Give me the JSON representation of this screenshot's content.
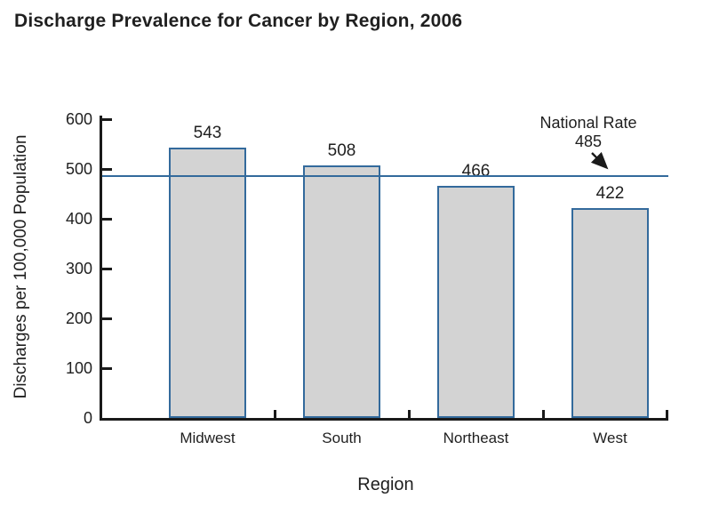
{
  "title": "Discharge Prevalence for Cancer by Region, 2006",
  "chart_data": {
    "type": "bar",
    "title": "Discharge Prevalence for Cancer by Region, 2006",
    "categories": [
      "Midwest",
      "South",
      "Northeast",
      "West"
    ],
    "values": [
      543,
      508,
      466,
      422
    ],
    "xlabel": "Region",
    "ylabel": "Discharges per 100,000 Population",
    "ylim": [
      0,
      600
    ],
    "yticks": [
      0,
      100,
      200,
      300,
      400,
      500,
      600
    ],
    "grid": false,
    "legend_position": "none",
    "data_labels_shown": true,
    "reference_line": {
      "value": 485,
      "label_line1": "National Rate",
      "label_line2": "485"
    },
    "colors": {
      "bar_fill": "#d3d3d3",
      "bar_border": "#336a9c",
      "reference_line": "#336a9c",
      "axis": "#1a1a1a",
      "text": "#1f1f1f",
      "background": "#ffffff"
    }
  }
}
